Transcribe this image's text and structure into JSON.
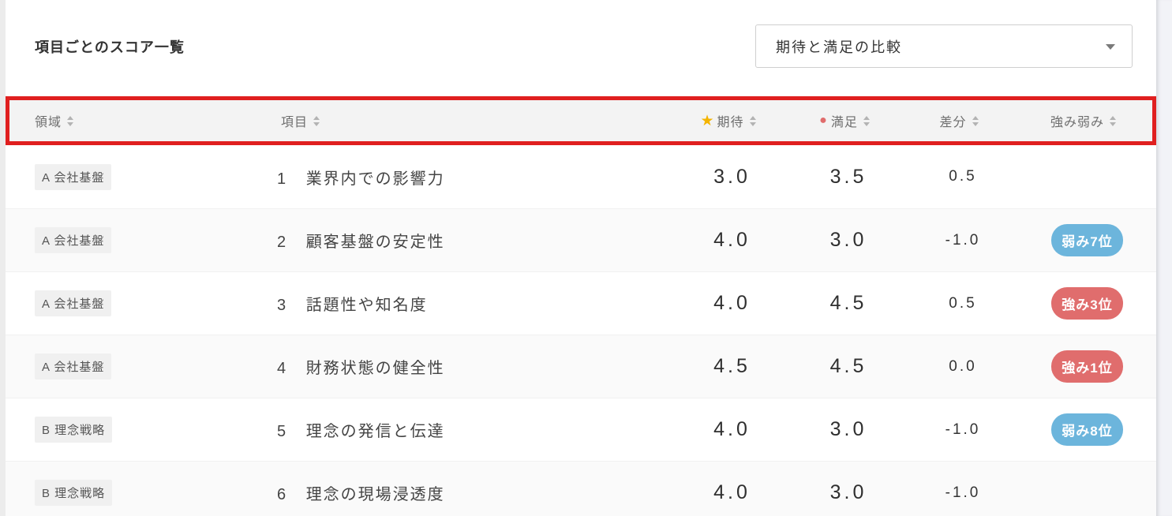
{
  "page": {
    "title": "項目ごとのスコア一覧",
    "view_select": {
      "value": "期待と満足の比較"
    }
  },
  "table": {
    "columns": [
      {
        "label": "領域"
      },
      {
        "label": "項目"
      },
      {
        "label": "期待",
        "icon": "star"
      },
      {
        "label": "満足",
        "icon": "dot"
      },
      {
        "label": "差分"
      },
      {
        "label": "強み弱み"
      }
    ],
    "icons": {
      "star_glyph": "★",
      "dot_glyph": "●"
    },
    "rows": [
      {
        "area": "A 会社基盤",
        "item_no": "1",
        "item_name": "業界内での影響力",
        "expect": "3.0",
        "satisfaction": "3.5",
        "diff": "0.5",
        "badge": null
      },
      {
        "area": "A 会社基盤",
        "item_no": "2",
        "item_name": "顧客基盤の安定性",
        "expect": "4.0",
        "satisfaction": "3.0",
        "diff": "-1.0",
        "badge": {
          "label": "弱み7位",
          "type": "weak"
        }
      },
      {
        "area": "A 会社基盤",
        "item_no": "3",
        "item_name": "話題性や知名度",
        "expect": "4.0",
        "satisfaction": "4.5",
        "diff": "0.5",
        "badge": {
          "label": "強み3位",
          "type": "strong"
        }
      },
      {
        "area": "A 会社基盤",
        "item_no": "4",
        "item_name": "財務状態の健全性",
        "expect": "4.5",
        "satisfaction": "4.5",
        "diff": "0.0",
        "badge": {
          "label": "強み1位",
          "type": "strong"
        }
      },
      {
        "area": "B 理念戦略",
        "item_no": "5",
        "item_name": "理念の発信と伝達",
        "expect": "4.0",
        "satisfaction": "3.0",
        "diff": "-1.0",
        "badge": {
          "label": "弱み8位",
          "type": "weak"
        }
      },
      {
        "area": "B 理念戦略",
        "item_no": "6",
        "item_name": "理念の現場浸透度",
        "expect": "4.0",
        "satisfaction": "3.0",
        "diff": "-1.0",
        "badge": null
      }
    ],
    "colors": {
      "strong_badge": "#e06d6d",
      "weak_badge": "#6cb5dc",
      "highlight_border": "#e01f1f",
      "star": "#f4b400",
      "dot": "#e06c6c"
    }
  }
}
